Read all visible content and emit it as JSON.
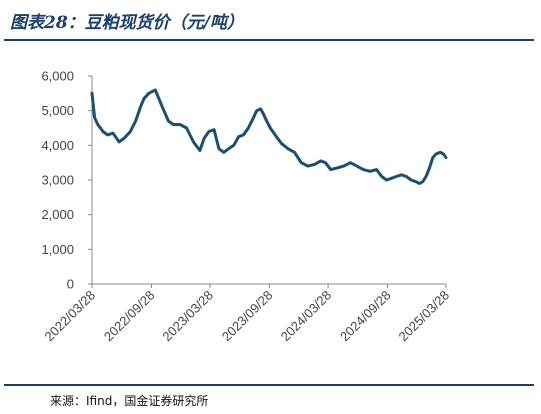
{
  "header": {
    "title": "图表28：豆粕现货价（元/吨）"
  },
  "footer": {
    "source": "来源：Ifind，国金证券研究所"
  },
  "chart_data": {
    "type": "line",
    "title": "图表28：豆粕现货价（元/吨）",
    "xlabel": "",
    "ylabel": "",
    "ylim": [
      0,
      6000
    ],
    "yticks": [
      0,
      1000,
      2000,
      3000,
      4000,
      5000,
      6000
    ],
    "ytick_labels": [
      "0",
      "1,000",
      "2,000",
      "3,000",
      "4,000",
      "5,000",
      "6,000"
    ],
    "xlim": [
      "2022-03-28",
      "2025-03-28"
    ],
    "xticks": [
      "2022/03/28",
      "2022/09/28",
      "2023/03/28",
      "2023/09/28",
      "2024/03/28",
      "2024/09/28",
      "2025/03/28"
    ],
    "grid": false,
    "legend": "none",
    "color": "#1b4f72",
    "series": [
      {
        "x": [
          "2022-03-28",
          "2022-04-05",
          "2022-04-15",
          "2022-05-01",
          "2022-05-15",
          "2022-06-01",
          "2022-06-20",
          "2022-07-05",
          "2022-07-25",
          "2022-08-10",
          "2022-08-25",
          "2022-09-05",
          "2022-09-20",
          "2022-10-10",
          "2022-11-01",
          "2022-11-20",
          "2022-12-05",
          "2022-12-25",
          "2023-01-15",
          "2023-02-05",
          "2023-02-25",
          "2023-03-10",
          "2023-03-25",
          "2023-04-10",
          "2023-04-25",
          "2023-05-10",
          "2023-05-25",
          "2023-06-10",
          "2023-06-25",
          "2023-07-10",
          "2023-07-25",
          "2023-08-10",
          "2023-08-20",
          "2023-09-01",
          "2023-09-10",
          "2023-09-20",
          "2023-10-01",
          "2023-10-20",
          "2023-11-05",
          "2023-11-25",
          "2023-12-15",
          "2024-01-05",
          "2024-01-25",
          "2024-02-15",
          "2024-03-05",
          "2024-03-20",
          "2024-04-05",
          "2024-04-25",
          "2024-05-15",
          "2024-06-05",
          "2024-06-25",
          "2024-07-15",
          "2024-08-05",
          "2024-08-25",
          "2024-09-10",
          "2024-09-25",
          "2024-10-10",
          "2024-10-25",
          "2024-11-10",
          "2024-11-25",
          "2024-12-10",
          "2024-12-25",
          "2025-01-05",
          "2025-01-15",
          "2025-01-25",
          "2025-02-05",
          "2025-02-15",
          "2025-02-25",
          "2025-03-10",
          "2025-03-20",
          "2025-03-28"
        ],
        "values": [
          5500,
          4800,
          4600,
          4400,
          4300,
          4350,
          4100,
          4200,
          4400,
          4700,
          5100,
          5350,
          5500,
          5600,
          5100,
          4700,
          4600,
          4600,
          4500,
          4100,
          3850,
          4200,
          4400,
          4450,
          3900,
          3800,
          3900,
          4000,
          4250,
          4300,
          4500,
          4800,
          5000,
          5050,
          4900,
          4700,
          4500,
          4250,
          4050,
          3900,
          3800,
          3500,
          3400,
          3450,
          3550,
          3500,
          3300,
          3350,
          3400,
          3500,
          3400,
          3300,
          3250,
          3300,
          3100,
          3000,
          3050,
          3100,
          3150,
          3100,
          3000,
          2950,
          2900,
          2950,
          3100,
          3350,
          3650,
          3750,
          3800,
          3750,
          3650
        ]
      }
    ]
  }
}
